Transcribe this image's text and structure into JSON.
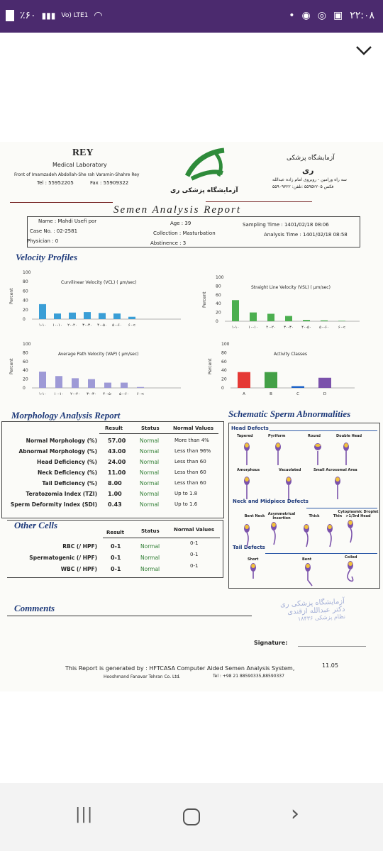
{
  "status_bar": {
    "battery": "٪۶۰",
    "network": "Vo) LTE1",
    "time": "۲۲:۰۸"
  },
  "nav": {
    "back_hint": "‹",
    "recents": "|||",
    "home": "○",
    "forward": "›"
  },
  "header": {
    "lab_name": "REY",
    "lab_sub": "Medical Laboratory",
    "address": "Front of Imamzadeh Abdollah-She rah Varamin-Shahre Rey",
    "tel": "Tel : 55952205",
    "fax": "Fax : 55909322",
    "fa_title": "آزمایشگاه پزشکی",
    "fa_name": "ری",
    "fa_address": "سه راه ورامین - روبروی امام زاده عبدالله",
    "fa_phone": "۵۵۹۰۹۳۲۲ :فکس  ۵۵۹۵۲۲۰۵ :تلفن",
    "fa_logo_caption": "آزمایشگاه پزشکی ری",
    "report_title": "Semen Analysis Report"
  },
  "patient": {
    "name_label": "Name :",
    "name": "Mahdi Usefi por",
    "case_label": "Case No. :",
    "case_no": "02-2581",
    "physician_label": "Physician :",
    "physician": "0",
    "age_label": "Age :",
    "age": "39",
    "collection_label": "Collection :",
    "collection": "Masturbation",
    "abstinence_label": "Abstinence :",
    "abstinence": "3",
    "sampling_label": "Sampling Time :",
    "sampling_time": "1401/02/18 08:06",
    "analysis_label": "Analysis Time :",
    "analysis_time": "1401/02/18 08:58"
  },
  "velocity": {
    "section_title": "Velocity Profiles",
    "percent_label": "Percent",
    "yticks": [
      "100",
      "80",
      "60",
      "40",
      "20",
      "0"
    ],
    "vcl_title": "Curvilinear Velocity (VCL) ( µm/sec)",
    "vsl_title": "Straight Line Velocity (VSL) ( µm/sec)",
    "vap_title": "Average Path Velocity (VAP) ( µm/sec)",
    "act_title": "Activity Classes",
    "vel_xticks": [
      "۱-۱۰",
      "۱۰-۱۰",
      "۲۰-۲۰",
      "۳۰-۳۰",
      "۴۰-۵۰",
      "۵۰-۶۰",
      "۶۰<"
    ],
    "act_xticks": [
      "A",
      "B",
      "C",
      "D"
    ],
    "accent_vcl": "#3a9ed6",
    "accent_vsl": "#4caf50",
    "accent_vap": "#9e9ad6"
  },
  "chart_data": [
    {
      "type": "bar",
      "title": "Curvilinear Velocity (VCL) ( µm/sec)",
      "ylabel": "Percent",
      "ylim": [
        0,
        100
      ],
      "categories": [
        "۱-۱۰",
        "۱۰-۱۰",
        "۲۰-۲۰",
        "۳۰-۳۰",
        "۴۰-۵۰",
        "۵۰-۶۰",
        "۶۰<"
      ],
      "values": [
        32,
        12,
        14,
        15,
        13,
        12,
        5
      ]
    },
    {
      "type": "bar",
      "title": "Straight Line Velocity (VSL) ( µm/sec)",
      "ylabel": "Percent",
      "ylim": [
        0,
        100
      ],
      "categories": [
        "۱-۱۰",
        "۱۰-۱۰",
        "۲۰-۲۰",
        "۳۰-۳۰",
        "۴۰-۵۰",
        "۵۰-۶۰",
        "۶۰<"
      ],
      "values": [
        48,
        20,
        17,
        12,
        3,
        2,
        1
      ]
    },
    {
      "type": "bar",
      "title": "Average Path Velocity (VAP) ( µm/sec)",
      "ylabel": "Percent",
      "ylim": [
        0,
        100
      ],
      "categories": [
        "۱-۱۰",
        "۱۰-۱۰",
        "۲۰-۲۰",
        "۳۰-۳۰",
        "۴۰-۵۰",
        "۵۰-۶۰",
        "۶۰<"
      ],
      "values": [
        37,
        27,
        22,
        20,
        12,
        12,
        2
      ]
    },
    {
      "type": "bar",
      "title": "Activity Classes",
      "ylabel": "Percent",
      "ylim": [
        0,
        100
      ],
      "categories": [
        "A",
        "B",
        "C",
        "D"
      ],
      "values": [
        36,
        36,
        4,
        23
      ],
      "colors": [
        "#e53935",
        "#43a047",
        "#1e63c8",
        "#7b52ab"
      ]
    }
  ],
  "morphology": {
    "section_title": "Morphology Analysis Report",
    "col_result": "Result",
    "col_status": "Status",
    "col_normal": "Normal Values",
    "rows": [
      {
        "label": "Normal Morphology (%)",
        "result": "57.00",
        "status": "Normal",
        "normal": "More than  4%"
      },
      {
        "label": "Abnormal Morphology (%)",
        "result": "43.00",
        "status": "Normal",
        "normal": "Less than  96%"
      },
      {
        "label": "Head Deficiency (%)",
        "result": "24.00",
        "status": "Normal",
        "normal": "Less than  60"
      },
      {
        "label": "Neck Deficiency (%)",
        "result": "11.00",
        "status": "Normal",
        "normal": "Less than  60"
      },
      {
        "label": "Tail Deficiency (%)",
        "result": "8.00",
        "status": "Normal",
        "normal": "Less than  60"
      },
      {
        "label": "Teratozomia Index (TZI)",
        "result": "1.00",
        "status": "Normal",
        "normal": "Up to  1.8"
      },
      {
        "label": "Sperm Deformity Index (SDI)",
        "result": "0.43",
        "status": "Normal",
        "normal": "Up to  1.6"
      }
    ]
  },
  "other_cells": {
    "section_title": "Other Cells",
    "col_result": "Result",
    "col_status": "Status",
    "col_normal": "Normal Values",
    "rows": [
      {
        "label": "RBC (/ HPF)",
        "result": "0-1",
        "status": "Normal",
        "normal": "0-1"
      },
      {
        "label": "Spermatogenic  (/ HPF)",
        "result": "0-1",
        "status": "Normal",
        "normal": "0-1"
      },
      {
        "label": "WBC (/ HPF)",
        "result": "0-1",
        "status": "Normal",
        "normal": "0-1"
      }
    ]
  },
  "schematic": {
    "section_title": "Schematic Sperm Abnormalities",
    "head_title": "Head Defects",
    "head_items": [
      "Tapered",
      "Pyriform",
      "Round",
      "Double Head",
      "Amorphous",
      "Vacuolated",
      "Small Acrosomal Area"
    ],
    "neck_title": "Neck and Midpiece Defects",
    "neck_items": [
      "Bent Neck",
      "Asymmetrical Insertion",
      "Thick",
      "Thin",
      "Cytoplasmic Droplet >1/3rd Head"
    ],
    "tail_title": "Tail Defects",
    "tail_items": [
      "Short",
      "Bent",
      "Coiled"
    ]
  },
  "comments": {
    "section_title": "Comments",
    "stamp_line1": "آزمایشگاه پزشکی ری",
    "stamp_line2": "دکتر عبدالله ازقندی",
    "stamp_line3": "نظام پزشکی ۱۸۴۳۶",
    "signature_label": "Signature:"
  },
  "footer": {
    "generated": "This Report is generated by :  HFTCASA Computer Aided Semen Analysis System,",
    "version": "11.05",
    "company": "Hooshmand Fanavar Tehran Co. Ltd.",
    "tel": "Tel : +98 21 88590335,88590337"
  }
}
